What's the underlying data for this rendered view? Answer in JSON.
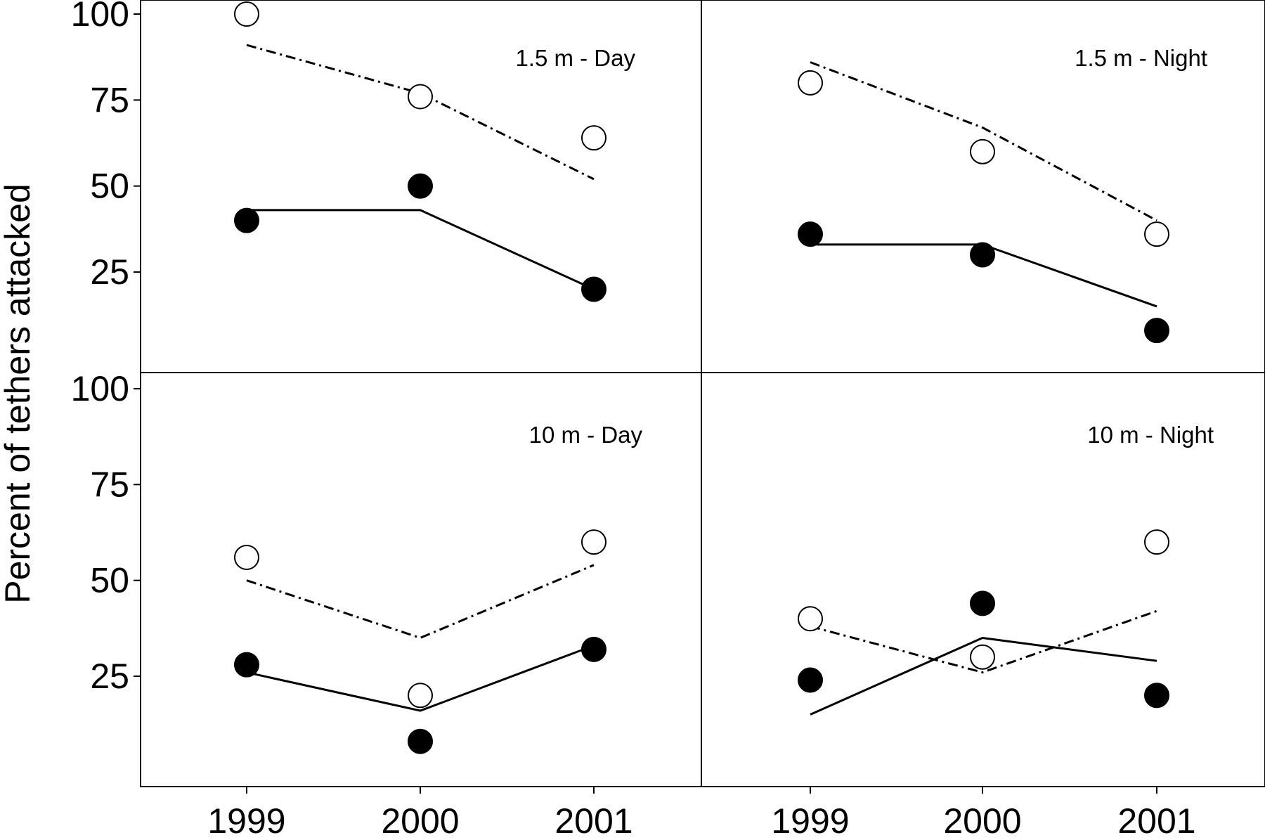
{
  "figure": {
    "ylabel": "Percent of tethers attacked",
    "ytick_labels": [
      "25",
      "50",
      "75",
      "100"
    ],
    "xtick_labels": [
      "1999",
      "2000",
      "2001"
    ]
  },
  "chart_data": [
    {
      "type": "scatter",
      "title": "1.5 m - Day",
      "xlabel": "",
      "ylabel": "Percent of tethers attacked",
      "x": [
        "1999",
        "2000",
        "2001"
      ],
      "ylim": [
        0,
        100
      ],
      "grid": false,
      "series": [
        {
          "marker": "open-circle",
          "values": [
            100,
            76,
            64
          ]
        },
        {
          "marker": "filled-circle",
          "values": [
            40,
            50,
            20
          ]
        },
        {
          "style": "dash-dot",
          "values": [
            91,
            77,
            52
          ]
        },
        {
          "style": "solid",
          "values": [
            43,
            43,
            20
          ]
        }
      ]
    },
    {
      "type": "scatter",
      "title": "1.5 m - Night",
      "xlabel": "",
      "ylabel": "",
      "x": [
        "1999",
        "2000",
        "2001"
      ],
      "ylim": [
        0,
        100
      ],
      "grid": false,
      "series": [
        {
          "marker": "open-circle",
          "values": [
            80,
            60,
            36
          ]
        },
        {
          "marker": "filled-circle",
          "values": [
            36,
            30,
            8
          ]
        },
        {
          "style": "dash-dot",
          "values": [
            86,
            67,
            40
          ]
        },
        {
          "style": "solid",
          "values": [
            33,
            33,
            15
          ]
        }
      ]
    },
    {
      "type": "scatter",
      "title": "10 m - Day",
      "xlabel": "",
      "ylabel": "Percent of tethers attacked",
      "x": [
        "1999",
        "2000",
        "2001"
      ],
      "ylim": [
        0,
        100
      ],
      "grid": false,
      "series": [
        {
          "marker": "open-circle",
          "values": [
            56,
            20,
            60
          ]
        },
        {
          "marker": "filled-circle",
          "values": [
            28,
            8,
            32
          ]
        },
        {
          "style": "dash-dot",
          "values": [
            50,
            35,
            54
          ]
        },
        {
          "style": "solid",
          "values": [
            26,
            16,
            33
          ]
        }
      ]
    },
    {
      "type": "scatter",
      "title": "10 m - Night",
      "xlabel": "",
      "ylabel": "",
      "x": [
        "1999",
        "2000",
        "2001"
      ],
      "ylim": [
        0,
        100
      ],
      "grid": false,
      "series": [
        {
          "marker": "open-circle",
          "values": [
            40,
            30,
            60
          ]
        },
        {
          "marker": "filled-circle",
          "values": [
            24,
            44,
            20
          ]
        },
        {
          "style": "dash-dot",
          "values": [
            38,
            26,
            42
          ]
        },
        {
          "style": "solid",
          "values": [
            15,
            35,
            29
          ]
        }
      ]
    }
  ]
}
